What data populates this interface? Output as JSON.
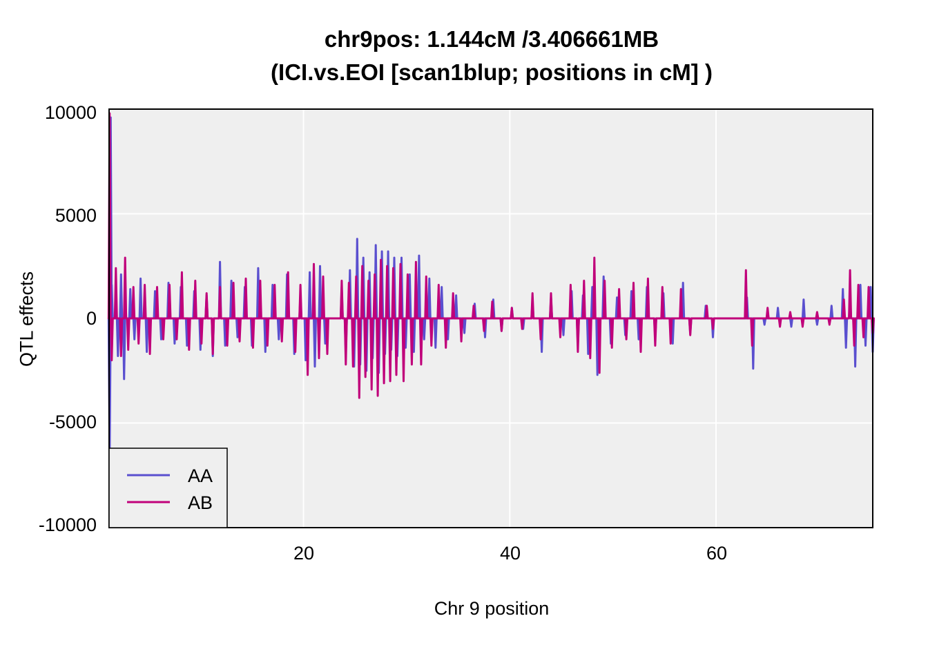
{
  "chart_data": {
    "type": "line",
    "title": "chr9pos: 1.144cM /3.406661MB",
    "subtitle": "(ICI.vs.EOI [scan1blup; positions in cM] )",
    "xlabel": "Chr 9 position",
    "ylabel": "QTL effects",
    "xlim": [
      1.144,
      75.2
    ],
    "ylim": [
      -10000,
      10000
    ],
    "xticks": [
      "20",
      "40",
      "60"
    ],
    "yticks": [
      "10000",
      "5000",
      "0",
      "-5000",
      "-10000"
    ],
    "grid": true,
    "legend_position": "bottom-left",
    "series": [
      {
        "name": "AA",
        "color": "#5a4fcf",
        "points": [
          [
            1.2,
            -6500
          ],
          [
            1.3,
            9600
          ],
          [
            1.4,
            1600
          ],
          [
            2.0,
            -1800
          ],
          [
            2.3,
            2100
          ],
          [
            2.6,
            -2900
          ],
          [
            3.2,
            1400
          ],
          [
            3.6,
            -1000
          ],
          [
            4.2,
            1900
          ],
          [
            4.8,
            -1600
          ],
          [
            5.6,
            1300
          ],
          [
            6.2,
            -1000
          ],
          [
            6.9,
            1700
          ],
          [
            7.5,
            -1200
          ],
          [
            8.1,
            1500
          ],
          [
            8.7,
            -1300
          ],
          [
            9.4,
            1300
          ],
          [
            10.0,
            -1500
          ],
          [
            10.6,
            1100
          ],
          [
            11.2,
            -1800
          ],
          [
            11.9,
            2700
          ],
          [
            12.4,
            -1300
          ],
          [
            13.0,
            1800
          ],
          [
            13.6,
            -900
          ],
          [
            14.3,
            1500
          ],
          [
            15.0,
            -1300
          ],
          [
            15.6,
            2400
          ],
          [
            16.3,
            -1600
          ],
          [
            17.0,
            1600
          ],
          [
            17.6,
            -1000
          ],
          [
            18.4,
            2100
          ],
          [
            19.1,
            -1700
          ],
          [
            19.7,
            1100
          ],
          [
            20.2,
            -2000
          ],
          [
            20.6,
            2200
          ],
          [
            21.1,
            -2300
          ],
          [
            21.6,
            2500
          ],
          [
            22.1,
            -1200
          ],
          [
            23.7,
            1500
          ],
          [
            24.1,
            -1700
          ],
          [
            24.5,
            2300
          ],
          [
            24.9,
            -2300
          ],
          [
            25.2,
            3800
          ],
          [
            25.5,
            -2200
          ],
          [
            25.8,
            2900
          ],
          [
            26.1,
            -2500
          ],
          [
            26.4,
            2200
          ],
          [
            26.7,
            -1900
          ],
          [
            27.0,
            3500
          ],
          [
            27.3,
            -2600
          ],
          [
            27.6,
            3200
          ],
          [
            27.9,
            -1700
          ],
          [
            28.2,
            3200
          ],
          [
            28.5,
            -1500
          ],
          [
            28.8,
            2900
          ],
          [
            29.1,
            -1800
          ],
          [
            29.5,
            2900
          ],
          [
            29.9,
            -1400
          ],
          [
            30.3,
            2100
          ],
          [
            30.7,
            -1600
          ],
          [
            31.2,
            3000
          ],
          [
            31.7,
            -1000
          ],
          [
            32.2,
            1900
          ],
          [
            32.8,
            -1400
          ],
          [
            33.4,
            1500
          ],
          [
            34.0,
            -1000
          ],
          [
            34.8,
            1100
          ],
          [
            35.6,
            -700
          ],
          [
            36.6,
            700
          ],
          [
            37.6,
            -900
          ],
          [
            38.4,
            900
          ],
          [
            39.2,
            -600
          ],
          [
            40.2,
            500
          ],
          [
            41.3,
            -500
          ],
          [
            42.2,
            800
          ],
          [
            43.1,
            -1600
          ],
          [
            44.0,
            1000
          ],
          [
            45.2,
            -800
          ],
          [
            46.0,
            1300
          ],
          [
            46.6,
            -1300
          ],
          [
            47.1,
            1100
          ],
          [
            47.6,
            -1700
          ],
          [
            48.0,
            1500
          ],
          [
            48.5,
            -2700
          ],
          [
            49.1,
            2000
          ],
          [
            49.8,
            -1200
          ],
          [
            50.4,
            1000
          ],
          [
            51.2,
            -800
          ],
          [
            51.8,
            1300
          ],
          [
            52.5,
            -1000
          ],
          [
            53.3,
            1500
          ],
          [
            54.1,
            -900
          ],
          [
            54.9,
            1200
          ],
          [
            55.8,
            -1200
          ],
          [
            56.8,
            1700
          ],
          [
            57.5,
            -700
          ],
          [
            59.0,
            600
          ],
          [
            59.7,
            -900
          ],
          [
            63.0,
            1000
          ],
          [
            63.6,
            -2400
          ],
          [
            64.7,
            -300
          ],
          [
            66.0,
            500
          ],
          [
            67.3,
            -400
          ],
          [
            68.5,
            900
          ],
          [
            69.8,
            -300
          ],
          [
            71.2,
            600
          ],
          [
            72.3,
            1400
          ],
          [
            72.6,
            -1400
          ],
          [
            73.0,
            1200
          ],
          [
            73.5,
            -2300
          ],
          [
            74.0,
            1600
          ],
          [
            74.5,
            -1300
          ],
          [
            75.0,
            1500
          ],
          [
            75.2,
            -1600
          ]
        ]
      },
      {
        "name": "AB",
        "color": "#c0007a",
        "points": [
          [
            1.2,
            9800
          ],
          [
            1.4,
            -2000
          ],
          [
            1.8,
            2400
          ],
          [
            2.3,
            -1800
          ],
          [
            2.7,
            2900
          ],
          [
            3.0,
            -1500
          ],
          [
            3.5,
            1500
          ],
          [
            4.0,
            -1200
          ],
          [
            4.6,
            1600
          ],
          [
            5.1,
            -1700
          ],
          [
            5.8,
            1500
          ],
          [
            6.4,
            -1000
          ],
          [
            7.0,
            1600
          ],
          [
            7.7,
            -1000
          ],
          [
            8.2,
            2200
          ],
          [
            8.9,
            -1500
          ],
          [
            9.5,
            1800
          ],
          [
            10.1,
            -1200
          ],
          [
            10.6,
            1200
          ],
          [
            11.2,
            -1700
          ],
          [
            11.9,
            1500
          ],
          [
            12.6,
            -1300
          ],
          [
            13.2,
            1700
          ],
          [
            13.8,
            -1100
          ],
          [
            14.4,
            1900
          ],
          [
            15.1,
            -1400
          ],
          [
            15.8,
            1800
          ],
          [
            16.5,
            -1300
          ],
          [
            17.2,
            1600
          ],
          [
            17.9,
            -1100
          ],
          [
            18.5,
            2200
          ],
          [
            19.2,
            -1600
          ],
          [
            19.7,
            1600
          ],
          [
            20.4,
            -2700
          ],
          [
            21.0,
            2600
          ],
          [
            21.5,
            -1900
          ],
          [
            21.9,
            2000
          ],
          [
            22.3,
            -1700
          ],
          [
            23.7,
            1800
          ],
          [
            24.1,
            -2200
          ],
          [
            24.4,
            1700
          ],
          [
            24.8,
            -2300
          ],
          [
            25.1,
            2000
          ],
          [
            25.4,
            -3800
          ],
          [
            25.7,
            2500
          ],
          [
            26.0,
            -2800
          ],
          [
            26.3,
            1800
          ],
          [
            26.6,
            -3400
          ],
          [
            26.9,
            2100
          ],
          [
            27.2,
            -3700
          ],
          [
            27.5,
            2800
          ],
          [
            27.8,
            -3100
          ],
          [
            28.1,
            2500
          ],
          [
            28.4,
            -3000
          ],
          [
            28.7,
            2400
          ],
          [
            29.0,
            -2700
          ],
          [
            29.4,
            2600
          ],
          [
            29.7,
            -3000
          ],
          [
            30.1,
            2100
          ],
          [
            30.5,
            -2200
          ],
          [
            30.9,
            2700
          ],
          [
            31.4,
            -2200
          ],
          [
            31.9,
            2000
          ],
          [
            32.4,
            -1300
          ],
          [
            33.1,
            1600
          ],
          [
            33.8,
            -1400
          ],
          [
            34.5,
            1200
          ],
          [
            35.3,
            -1100
          ],
          [
            36.5,
            600
          ],
          [
            37.5,
            -600
          ],
          [
            38.3,
            800
          ],
          [
            39.2,
            -600
          ],
          [
            40.2,
            500
          ],
          [
            41.2,
            -500
          ],
          [
            42.2,
            1200
          ],
          [
            43.0,
            -1000
          ],
          [
            44.0,
            1200
          ],
          [
            44.9,
            -900
          ],
          [
            45.9,
            1600
          ],
          [
            46.6,
            -1600
          ],
          [
            47.2,
            1800
          ],
          [
            47.8,
            -1900
          ],
          [
            48.2,
            2900
          ],
          [
            48.7,
            -2600
          ],
          [
            49.2,
            1800
          ],
          [
            49.9,
            -1400
          ],
          [
            50.6,
            1400
          ],
          [
            51.3,
            -1000
          ],
          [
            52.0,
            1700
          ],
          [
            52.7,
            -1600
          ],
          [
            53.4,
            1900
          ],
          [
            54.1,
            -1300
          ],
          [
            54.8,
            1500
          ],
          [
            55.6,
            -1200
          ],
          [
            56.6,
            1400
          ],
          [
            57.5,
            -800
          ],
          [
            59.1,
            600
          ],
          [
            59.7,
            -500
          ],
          [
            62.9,
            2300
          ],
          [
            63.5,
            -1300
          ],
          [
            65.0,
            500
          ],
          [
            66.2,
            -400
          ],
          [
            67.2,
            300
          ],
          [
            68.4,
            -400
          ],
          [
            69.8,
            300
          ],
          [
            71.0,
            -300
          ],
          [
            72.4,
            900
          ],
          [
            73.0,
            2300
          ],
          [
            73.4,
            -1300
          ],
          [
            73.8,
            1600
          ],
          [
            74.3,
            -900
          ],
          [
            74.8,
            1500
          ],
          [
            75.2,
            -700
          ]
        ]
      }
    ]
  }
}
